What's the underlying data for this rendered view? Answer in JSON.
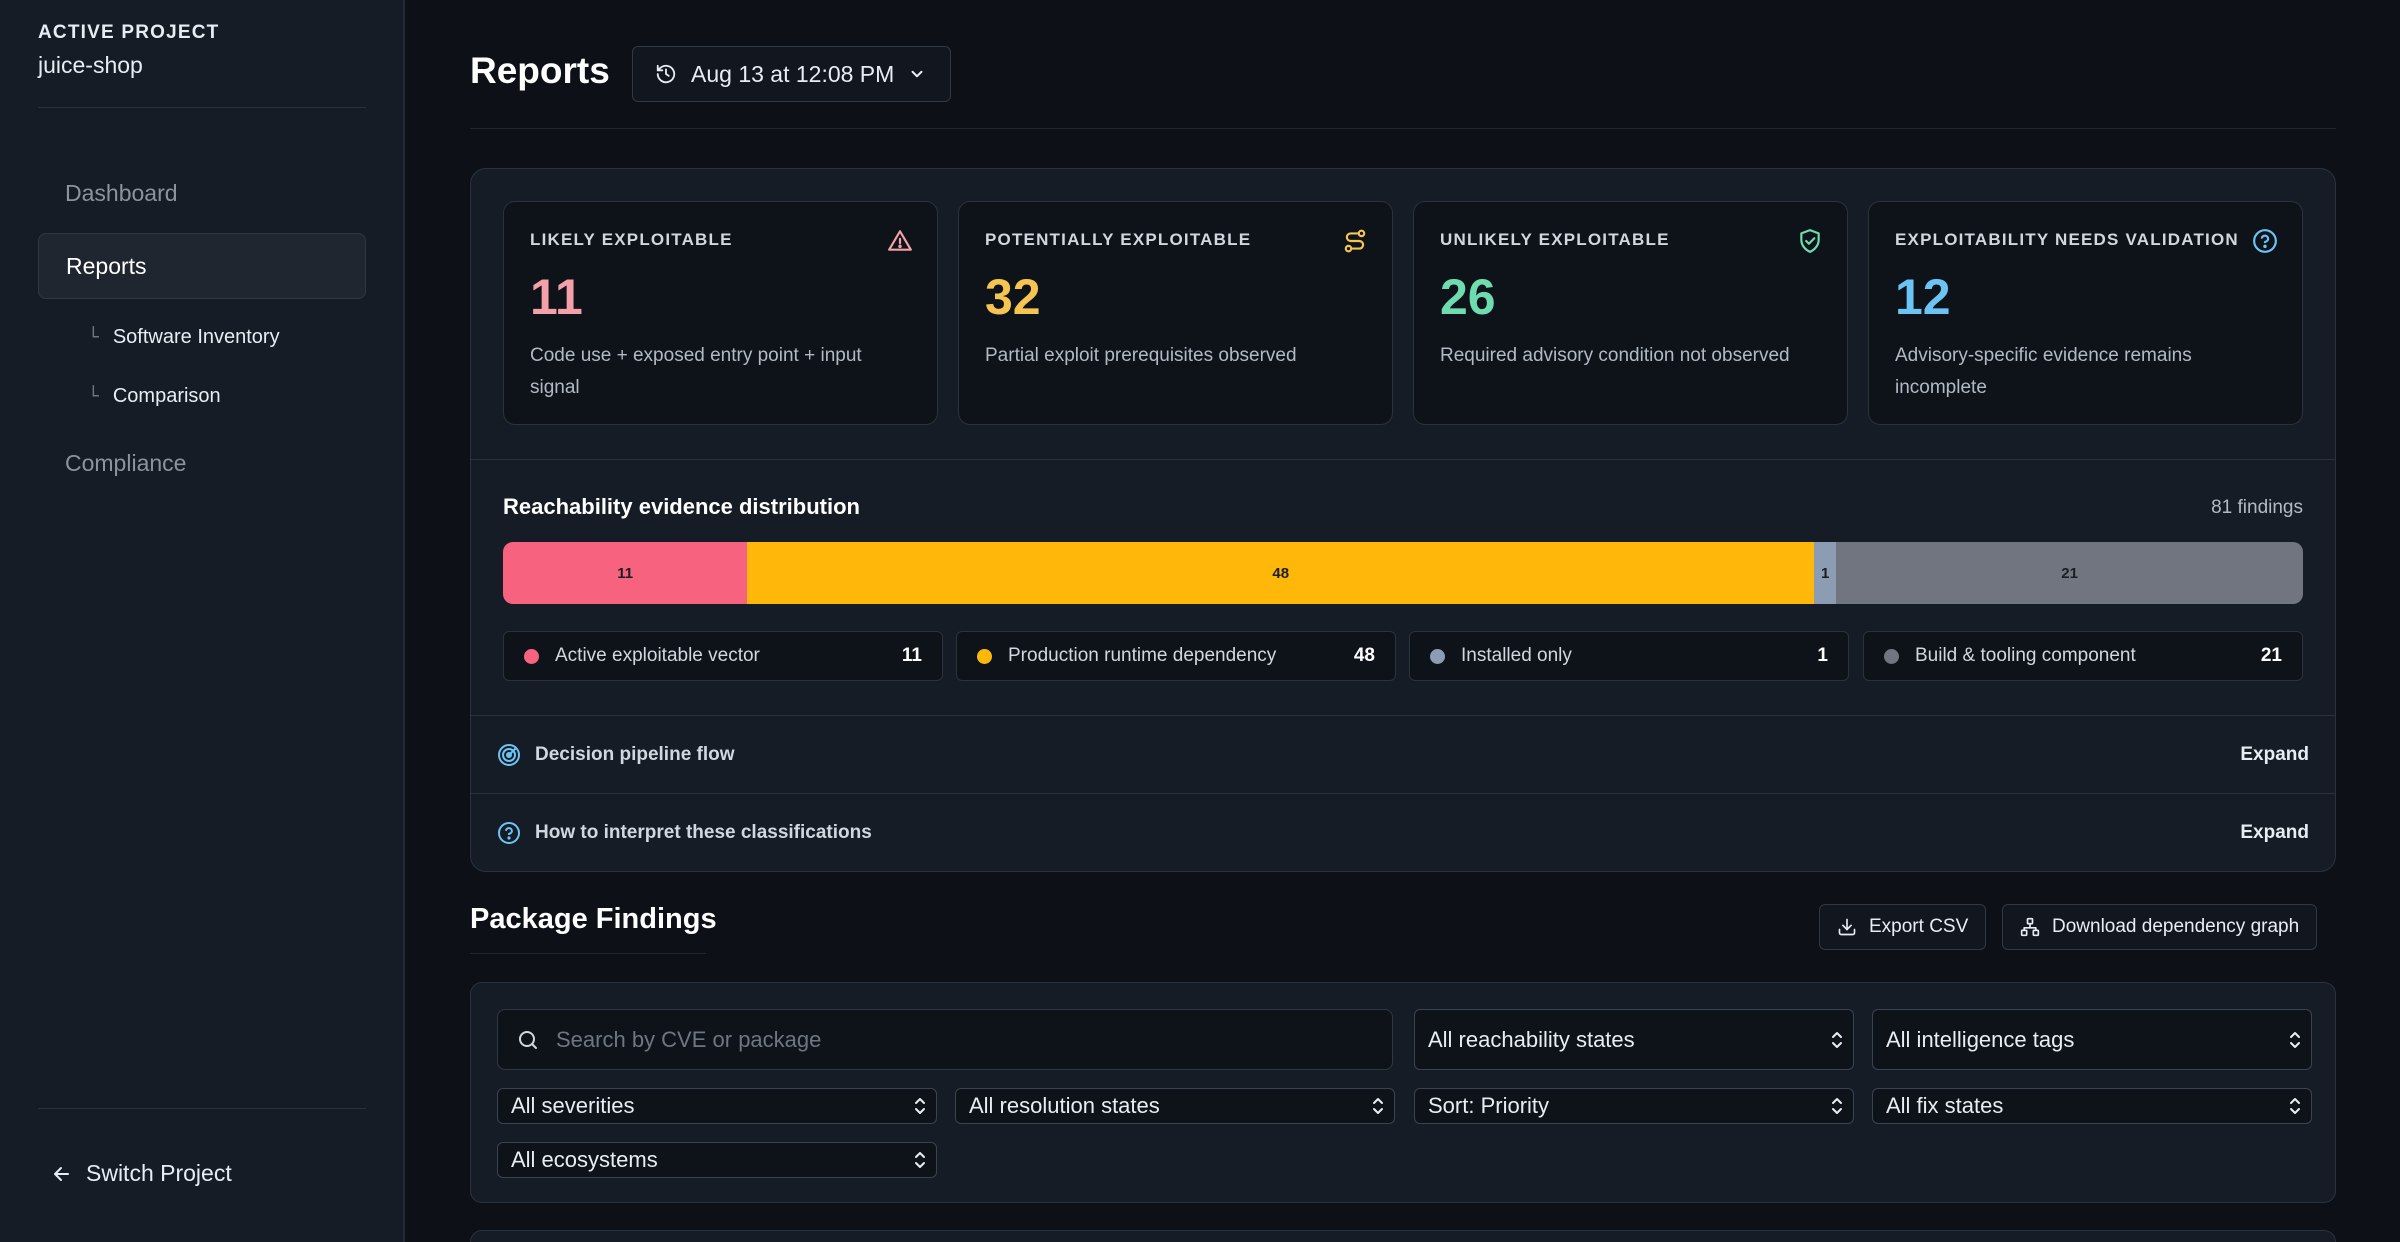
{
  "sidebar": {
    "label": "ACTIVE PROJECT",
    "project": "juice-shop",
    "nav": {
      "dashboard": "Dashboard",
      "reports": "Reports",
      "software_inventory": "Software Inventory",
      "comparison": "Comparison",
      "compliance": "Compliance"
    },
    "tree_glyph": "└",
    "switch_project": "Switch Project"
  },
  "header": {
    "title": "Reports",
    "snapshot": "Aug 13 at 12:08 PM"
  },
  "cards": [
    {
      "title": "LIKELY EXPLOITABLE",
      "value": "11",
      "desc": "Code use + exposed entry point + input signal",
      "color": "#f4a0a8",
      "icon": "warning-icon"
    },
    {
      "title": "POTENTIALLY EXPLOITABLE",
      "value": "32",
      "desc": "Partial exploit prerequisites observed",
      "color": "#f5c451",
      "icon": "route-icon"
    },
    {
      "title": "UNLIKELY EXPLOITABLE",
      "value": "26",
      "desc": "Required advisory condition not observed",
      "color": "#6fdcaf",
      "icon": "shield-check-icon"
    },
    {
      "title": "EXPLOITABILITY NEEDS VALIDATION",
      "value": "12",
      "desc": "Advisory-specific evidence remains incomplete",
      "color": "#6cc4f5",
      "icon": "help-circle-icon"
    }
  ],
  "distribution": {
    "title": "Reachability evidence distribution",
    "total": "81 findings",
    "segments": [
      {
        "label": "Active exploitable vector",
        "count": "11",
        "value": 11,
        "color": "#f7637f"
      },
      {
        "label": "Production runtime dependency",
        "count": "48",
        "value": 48,
        "color": "#ffb70a"
      },
      {
        "label": "Installed only",
        "count": "1",
        "value": 1,
        "color": "#8b9cb3"
      },
      {
        "label": "Build & tooling component",
        "count": "21",
        "value": 21,
        "color": "#71757f"
      }
    ]
  },
  "accordions": {
    "pipeline": "Decision pipeline flow",
    "interpret": "How to interpret these classifications",
    "expand": "Expand"
  },
  "findings": {
    "title": "Package Findings",
    "export_csv": "Export CSV",
    "download_graph": "Download dependency graph",
    "search_placeholder": "Search by CVE or package",
    "filters": {
      "reachability": "All reachability states",
      "intelligence": "All intelligence tags",
      "severities": "All severities",
      "resolution": "All resolution states",
      "sort": "Sort: Priority",
      "fix": "All fix states",
      "ecosystems": "All ecosystems"
    }
  }
}
